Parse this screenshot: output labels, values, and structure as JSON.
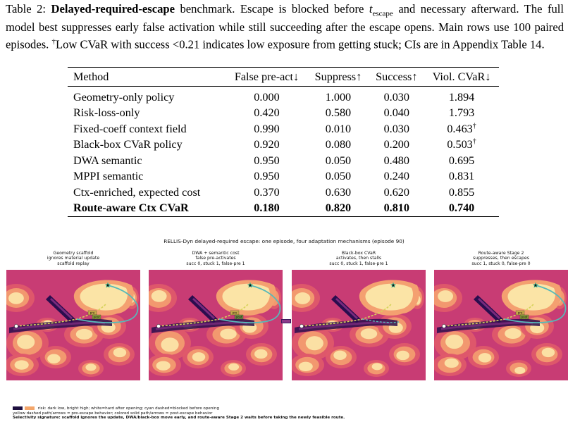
{
  "caption": {
    "label": "Table 2:",
    "benchmark_name": "Delayed-required-escape",
    "s1": "benchmark. Escape is blocked before",
    "t_var": "t",
    "t_sub": "escape",
    "s2": "and necessary afterward. The full model best suppresses early false activation while still succeeding after the escape opens. Main rows use 100 paired episodes.",
    "dagger": "†",
    "s3": "Low CVaR with success <0.21 indicates low exposure from getting stuck; CIs are in Appendix Table 14."
  },
  "table": {
    "headers": [
      "Method",
      "False pre-act↓",
      "Suppress↑",
      "Success↑",
      "Viol. CVaR↓"
    ],
    "rows": [
      {
        "method": "Geometry-only policy",
        "false_pre": "0.000",
        "suppress": "1.000",
        "success": "0.030",
        "cvar": "1.894",
        "cvar_mark": "",
        "bold": false
      },
      {
        "method": "Risk-loss-only",
        "false_pre": "0.420",
        "suppress": "0.580",
        "success": "0.040",
        "cvar": "1.793",
        "cvar_mark": "",
        "bold": false
      },
      {
        "method": "Fixed-coeff context field",
        "false_pre": "0.990",
        "suppress": "0.010",
        "success": "0.030",
        "cvar": "0.463",
        "cvar_mark": "†",
        "bold": false
      },
      {
        "method": "Black-box CVaR policy",
        "false_pre": "0.920",
        "suppress": "0.080",
        "success": "0.200",
        "cvar": "0.503",
        "cvar_mark": "†",
        "bold": false
      },
      {
        "method": "DWA semantic",
        "false_pre": "0.950",
        "suppress": "0.050",
        "success": "0.480",
        "cvar": "0.695",
        "cvar_mark": "",
        "bold": false
      },
      {
        "method": "MPPI semantic",
        "false_pre": "0.950",
        "suppress": "0.050",
        "success": "0.240",
        "cvar": "0.831",
        "cvar_mark": "",
        "bold": false
      },
      {
        "method": "Ctx-enriched, expected cost",
        "false_pre": "0.370",
        "suppress": "0.630",
        "success": "0.620",
        "cvar": "0.855",
        "cvar_mark": "",
        "bold": false
      },
      {
        "method": "Route-aware Ctx CVaR",
        "false_pre": "0.180",
        "suppress": "0.820",
        "success": "0.810",
        "cvar": "0.740",
        "cvar_mark": "",
        "bold": true
      }
    ]
  },
  "figure": {
    "title": "RELLIS-Dyn delayed-required escape: one episode, four adaptation mechanisms (episode 90)",
    "panels": [
      {
        "lines": [
          "Geometry scaffold",
          "ignores material update",
          "scaffold replay"
        ],
        "labels": [
          "pre",
          "post"
        ],
        "label_colors": [
          "#c8a94a",
          "#8a9a3a"
        ]
      },
      {
        "lines": [
          "DWA + semantic cost",
          "false pre-activates",
          "succ 0, stuck 1, false-pre 1"
        ],
        "labels": [
          "pre",
          "post"
        ],
        "label_colors": [
          "#c8a94a",
          "#6e8a42"
        ]
      },
      {
        "lines": [
          "Black-box CVaR",
          "activates, then stalls",
          "succ 0, stuck 1, false-pre 1"
        ],
        "labels": [],
        "label_colors": []
      },
      {
        "lines": [
          "Route-aware Stage 2",
          "suppresses, then escapes",
          "succ 1, stuck 0, false-pre 0"
        ],
        "labels": [
          "pre",
          "post"
        ],
        "label_colors": [
          "#c8a94a",
          "#8a9a3a"
        ]
      }
    ],
    "colors": {
      "field_base": "#c83c74",
      "field_mid": "#e05a6a",
      "field_warm": "#f4a070",
      "field_light": "#fbe4a6",
      "barrier": "#2a0d4e",
      "barrier_mid": "#7a2a7e",
      "pre_path": "#d6d25a",
      "post_path": "#57b9b9",
      "goal_star": "#2db38f"
    },
    "legend": {
      "line1": "risk: dark low, bright high; white=hard after opening; cyan dashed=blocked before opening",
      "line2": "yellow dashed path/arrows = pre-escape behavior; colored solid path/arrows = post-escape behavior",
      "line3": "Selectivity signature: scaffold ignores the update, DWA/black-box move early, and route-aware Stage 2 waits before taking the newly feasible route.",
      "swatch_colors": [
        "#1d0f3f",
        "#f4a66a"
      ]
    }
  }
}
